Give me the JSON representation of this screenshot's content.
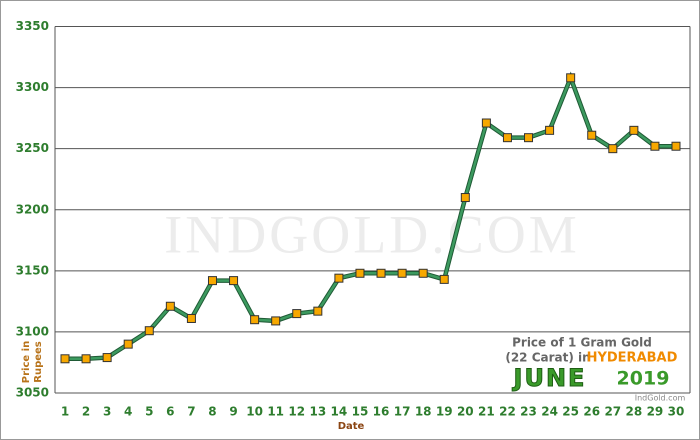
{
  "chart_data": {
    "type": "line",
    "categories": [
      "1",
      "2",
      "3",
      "4",
      "5",
      "6",
      "7",
      "8",
      "9",
      "10",
      "11",
      "12",
      "13",
      "14",
      "15",
      "16",
      "17",
      "18",
      "19",
      "20",
      "21",
      "22",
      "23",
      "24",
      "25",
      "26",
      "27",
      "28",
      "29",
      "30"
    ],
    "series": [
      {
        "name": "Price of 1 Gram Gold",
        "color": "#3c9a5f",
        "marker_color": "#f7a800",
        "values": [
          3078,
          3078,
          3079,
          3090,
          3101,
          3121,
          3111,
          3142,
          3142,
          3110,
          3109,
          3115,
          3117,
          3144,
          3148,
          3148,
          3148,
          3148,
          3143,
          3210,
          3271,
          3259,
          3259,
          3265,
          3308,
          3261,
          3250,
          3265,
          3252,
          3252
        ]
      }
    ],
    "ylim": [
      3050,
      3350
    ],
    "yticks": [
      3050,
      3100,
      3150,
      3200,
      3250,
      3300,
      3350
    ],
    "grid": true,
    "xlabel": "Date",
    "ylabel": [
      "Price in",
      "Rupees"
    ],
    "watermark": "IndGold.com",
    "annotation": {
      "line1": "Price of 1 Gram Gold",
      "line2": "(22 Carat) in",
      "city": "HYDERABAD",
      "month": "JUNE",
      "year": "2019",
      "source": "IndGold.com"
    }
  }
}
